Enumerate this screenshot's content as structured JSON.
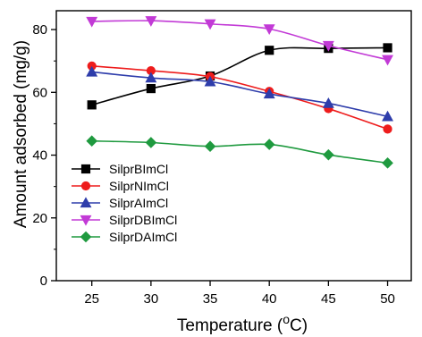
{
  "chart_data": {
    "type": "line",
    "title": "",
    "xlabel": "Temperature (",
    "xlabel_sup": "o",
    "xlabel_unit": "C)",
    "ylabel": "Amount adsorbed (mg/g)",
    "xlim": [
      22,
      52
    ],
    "ylim": [
      0,
      86
    ],
    "x": [
      25,
      30,
      35,
      40,
      45,
      50
    ],
    "xticks": [
      25,
      30,
      35,
      40,
      45,
      50
    ],
    "yticks": [
      0,
      20,
      40,
      60,
      80
    ],
    "grid": false,
    "legend_position": "lower-left",
    "series": [
      {
        "name": "SilprBImCl",
        "color": "#000000",
        "marker": "square",
        "values": [
          56.0,
          61.2,
          65.2,
          73.4,
          74.0,
          74.2
        ]
      },
      {
        "name": "SilprNImCl",
        "color": "#ee1c1c",
        "marker": "circle",
        "values": [
          68.4,
          66.9,
          65.0,
          60.3,
          54.8,
          48.3
        ]
      },
      {
        "name": "SilprAImCl",
        "color": "#2e3dab",
        "marker": "triangle-up",
        "values": [
          66.5,
          64.6,
          63.4,
          59.5,
          56.5,
          52.3
        ]
      },
      {
        "name": "SilprDBImCl",
        "color": "#c23ad6",
        "marker": "triangle-down",
        "values": [
          82.6,
          82.8,
          81.8,
          80.2,
          74.9,
          70.4
        ]
      },
      {
        "name": "SilprDAImCl",
        "color": "#1f9a3f",
        "marker": "diamond",
        "values": [
          44.5,
          44.0,
          42.8,
          43.4,
          40.1,
          37.5
        ]
      }
    ]
  }
}
